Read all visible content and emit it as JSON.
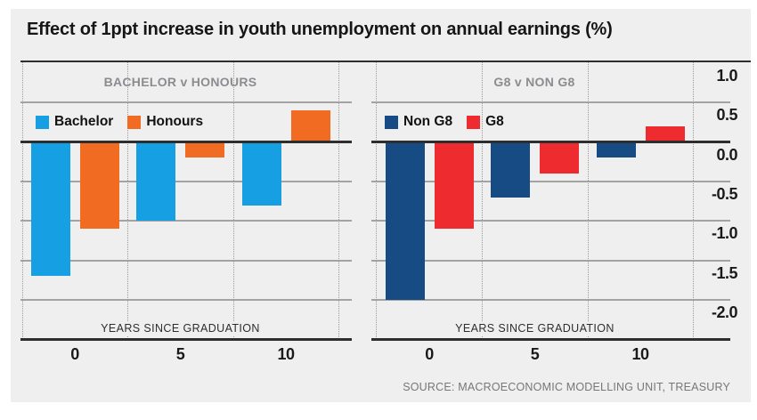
{
  "title": "Effect of 1ppt increase in youth unemployment on annual earnings (%)",
  "source": "SOURCE: MACROECONOMIC MODELLING UNIT, TREASURY",
  "x_axis": {
    "label": "YEARS SINCE GRADUATION",
    "tick_labels": [
      "0",
      "5",
      "10"
    ]
  },
  "y_axis": {
    "side": "right",
    "tick_labels": [
      "1.0",
      "0.5",
      "0.0",
      "-0.5",
      "-1.0",
      "-1.5",
      "-2.0"
    ]
  },
  "colors": {
    "card_background": "#F0EFEF",
    "grid_line": "#A3A3A3",
    "axis_line": "#2E2E2E",
    "dotted_grid": "#9B9B9B",
    "header_text": "#8A8C8F",
    "source_text": "#76777A",
    "bachelor_blue": "#16A0E3",
    "honours_orange": "#F16B22",
    "non_g8_navy": "#174B83",
    "g8_red": "#EE2C30"
  },
  "chart_data": [
    {
      "type": "bar",
      "title": "BACHELOR v HONOURS",
      "xlabel": "YEARS SINCE GRADUATION",
      "categories": [
        "0",
        "5",
        "10"
      ],
      "ylim": [
        -2.5,
        1.0
      ],
      "grid": true,
      "legend_position": "top-left",
      "series": [
        {
          "name": "Bachelor",
          "color": "#16A0E3",
          "values": [
            -1.7,
            -1.0,
            -0.8
          ]
        },
        {
          "name": "Honours",
          "color": "#F16B22",
          "values": [
            -1.1,
            -0.2,
            0.4
          ]
        }
      ]
    },
    {
      "type": "bar",
      "title": "G8 v NON G8",
      "xlabel": "YEARS SINCE GRADUATION",
      "categories": [
        "0",
        "5",
        "10"
      ],
      "ylim": [
        -2.5,
        1.0
      ],
      "grid": true,
      "legend_position": "top-left",
      "series": [
        {
          "name": "Non G8",
          "color": "#174B83",
          "values": [
            -2.0,
            -0.7,
            -0.2
          ]
        },
        {
          "name": "G8",
          "color": "#EE2C30",
          "values": [
            -1.1,
            -0.4,
            0.2
          ]
        }
      ]
    }
  ]
}
